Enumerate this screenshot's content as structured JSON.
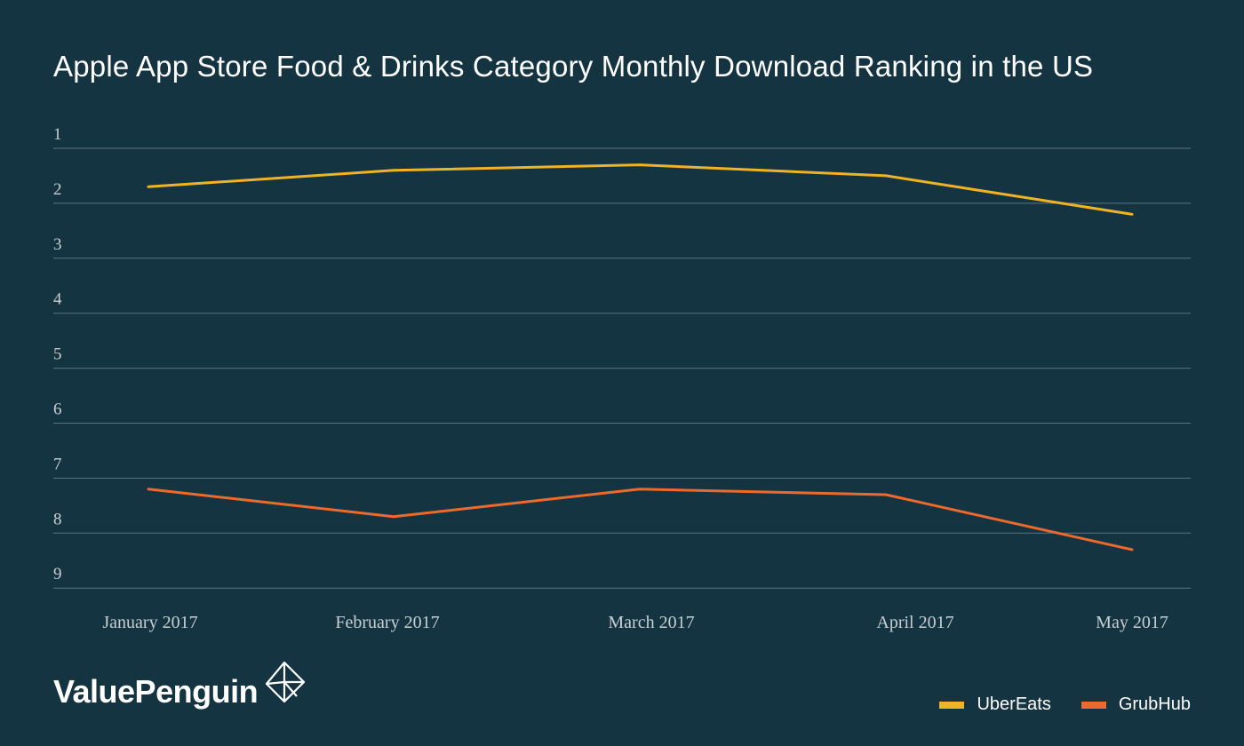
{
  "chart_data": {
    "type": "line",
    "title": "Apple App Store Food & Drinks Category Monthly Download Ranking in the US",
    "categories": [
      "January 2017",
      "February 2017",
      "March 2017",
      "April 2017",
      "May 2017"
    ],
    "series": [
      {
        "name": "UberEats",
        "color": "#f0b323",
        "values": [
          1.7,
          1.4,
          1.3,
          1.5,
          2.2
        ]
      },
      {
        "name": "GrubHub",
        "color": "#ed6a2c",
        "values": [
          7.2,
          7.7,
          7.2,
          7.3,
          8.3
        ]
      }
    ],
    "yticks": [
      "1",
      "2",
      "3",
      "4",
      "5",
      "6",
      "7",
      "8",
      "9"
    ],
    "ylim": [
      1,
      9
    ],
    "y_inverted": true,
    "grid": true,
    "legend_position": "bottom-right"
  },
  "brand": {
    "name": "ValuePenguin"
  }
}
